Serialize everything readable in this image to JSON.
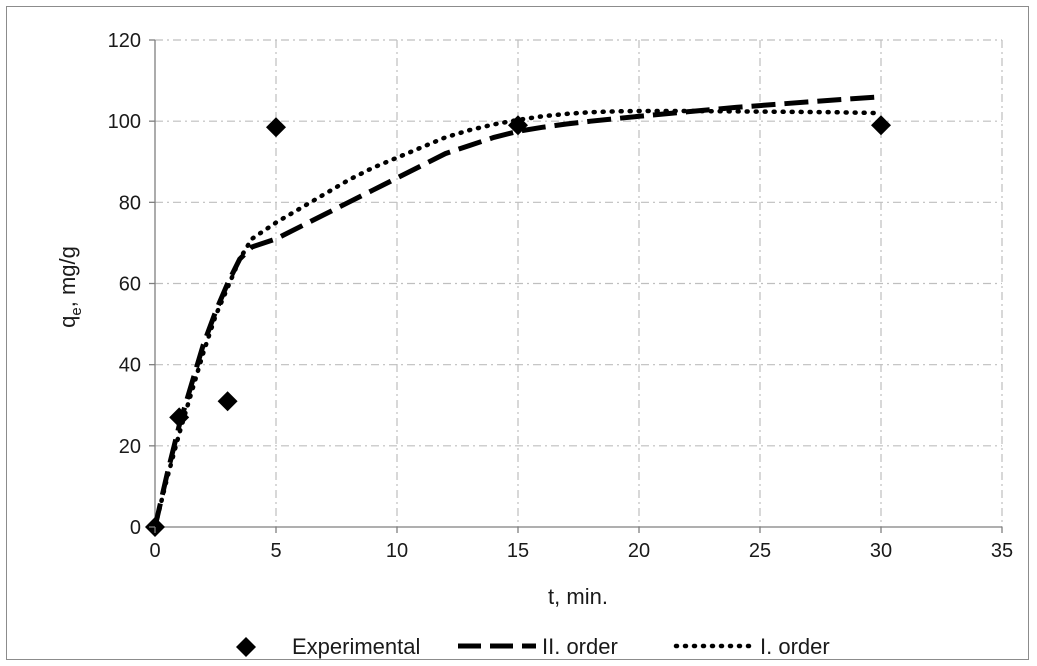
{
  "chart_data": {
    "type": "scatter",
    "title": "",
    "xlabel": "t, min.",
    "ylabel_main": "q",
    "ylabel_sub": "e",
    "ylabel_rest": ", mg/g",
    "xlim": [
      0,
      35
    ],
    "ylim": [
      0,
      120
    ],
    "xticks": [
      "0",
      "5",
      "10",
      "15",
      "20",
      "25",
      "30",
      "35"
    ],
    "yticks": [
      "0",
      "20",
      "40",
      "60",
      "80",
      "100",
      "120"
    ],
    "grid": true,
    "legend_position": "bottom",
    "series": [
      {
        "name": "Experimental",
        "kind": "markers",
        "marker": "diamond",
        "color": "#000000",
        "x": [
          0,
          1,
          3,
          5,
          15,
          30
        ],
        "y": [
          0,
          27,
          31,
          98.5,
          99,
          99
        ]
      },
      {
        "name": "II. order",
        "kind": "line",
        "style": "long-dash",
        "color": "#000000",
        "x": [
          0,
          0.5,
          1,
          1.5,
          2,
          2.5,
          3,
          3.5,
          4,
          5,
          6,
          7,
          8,
          9,
          10,
          11,
          12,
          13,
          14,
          15,
          16,
          17,
          18,
          19,
          20,
          22,
          24,
          26,
          28,
          30
        ],
        "y": [
          0,
          13,
          25,
          35,
          45,
          53,
          60,
          66,
          69,
          71,
          74,
          77,
          80,
          83,
          86,
          89,
          92,
          94,
          96,
          97.5,
          98.5,
          99.3,
          100,
          100.6,
          101.2,
          102.3,
          103.4,
          104.3,
          105.2,
          106
        ]
      },
      {
        "name": "I. order",
        "kind": "line",
        "style": "dotted",
        "color": "#000000",
        "x": [
          0,
          0.5,
          1,
          1.5,
          2,
          2.5,
          3,
          3.5,
          4,
          5,
          6,
          7,
          8,
          9,
          10,
          11,
          12,
          13,
          14,
          15,
          16,
          17,
          18,
          19,
          20,
          22,
          24,
          26,
          28,
          30
        ],
        "y": [
          0,
          12,
          23,
          33,
          43,
          52,
          59,
          66,
          71,
          75,
          78.5,
          82,
          85.5,
          88.5,
          91,
          93.5,
          96,
          97.8,
          99.2,
          100.3,
          101.2,
          101.8,
          102.2,
          102.4,
          102.5,
          102.5,
          102.4,
          102.3,
          102.2,
          102
        ]
      }
    ]
  }
}
